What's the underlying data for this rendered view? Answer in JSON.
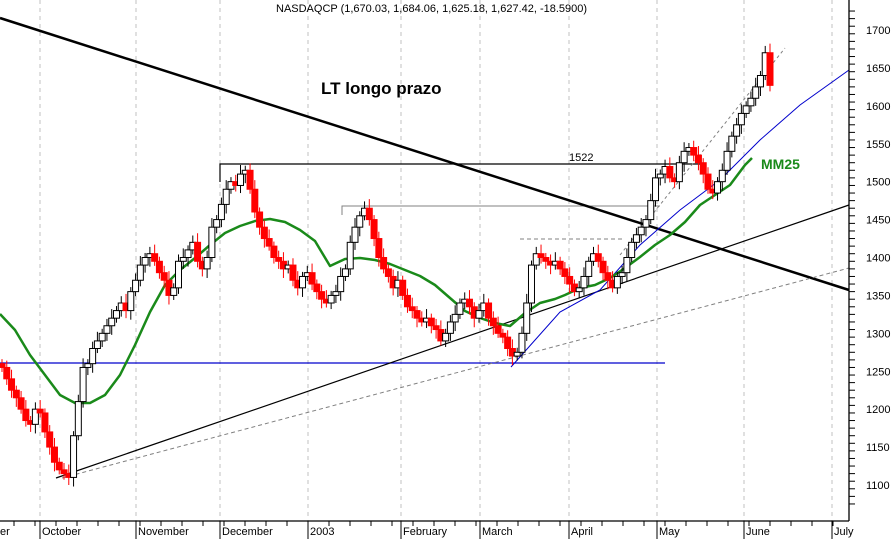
{
  "header": {
    "title": "NASDAQCP (1,670.03, 1,684.06, 1,625.18, 1,627.42, -18.5900)"
  },
  "annotations": {
    "long_trend": "LT longo prazo",
    "resistance_level": "1522",
    "moving_average": "MM25"
  },
  "colors": {
    "up_candle": "#ffffff",
    "down_candle": "#ff0000",
    "moving_average": "#1a8a1a",
    "support_line": "#0000cc",
    "trend_line": "#000000",
    "grid": "#c0c0c0"
  },
  "chart_data": {
    "type": "candlestick",
    "title": "NASDAQCP (1,670.03, 1,684.06, 1,625.18, 1,627.42, -18.5900)",
    "xlabel": "",
    "ylabel": "",
    "ylim": [
      1070,
      1730
    ],
    "y_ticks": [
      1100,
      1150,
      1200,
      1250,
      1300,
      1350,
      1400,
      1450,
      1500,
      1550,
      1600,
      1650,
      1700
    ],
    "x_tick_labels": [
      "er",
      "October",
      "November",
      "December",
      "2003",
      "February",
      "March",
      "April",
      "May",
      "June",
      "July"
    ],
    "grid": "vertical dashed at month boundaries",
    "last_bar": {
      "open": 1670.03,
      "high": 1684.06,
      "low": 1625.18,
      "close": 1627.42,
      "change": -18.59
    },
    "key_levels": {
      "resistance_1522": 1522,
      "support_1253": 1253,
      "intermediate_high": 1467,
      "local_high_march": 1425
    },
    "lines": [
      {
        "name": "LT longo prazo",
        "type": "long-term downtrend",
        "from_y_value": 1730,
        "to_y_value": 1355
      },
      {
        "name": "support uptrend",
        "from_value": 1108,
        "to_value": 1465
      },
      {
        "name": "steep uptrend (blue)",
        "from_value": 1253,
        "to_value": 1645
      },
      {
        "name": "MM25",
        "type": "25-day moving average"
      }
    ],
    "series": [
      {
        "name": "MM25",
        "values_approx": [
          1325,
          1280,
          1220,
          1205,
          1230,
          1300,
          1360,
          1400,
          1420,
          1415,
          1405,
          1395,
          1380,
          1360,
          1330,
          1310,
          1310,
          1330,
          1345,
          1360,
          1400,
          1470,
          1530
        ]
      }
    ]
  }
}
